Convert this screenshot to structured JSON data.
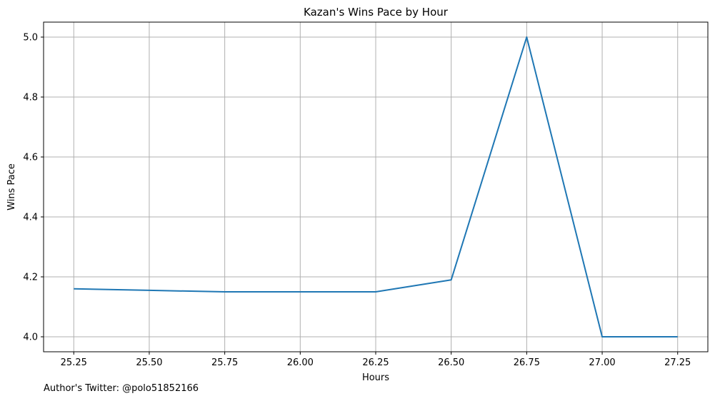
{
  "chart_data": {
    "type": "line",
    "title": "Kazan's Wins Pace by Hour",
    "xlabel": "Hours",
    "ylabel": "Wins Pace",
    "x": [
      25.25,
      25.5,
      25.75,
      26.0,
      26.25,
      26.5,
      26.75,
      27.0,
      27.25
    ],
    "series": [
      {
        "values": [
          4.16,
          4.155,
          4.15,
          4.15,
          4.15,
          4.19,
          5.0,
          4.0,
          4.0
        ],
        "color": "#1f77b4"
      }
    ],
    "xlim": [
      25.15,
      27.35
    ],
    "ylim": [
      3.95,
      5.05
    ],
    "xticks": [
      25.25,
      25.5,
      25.75,
      26.0,
      26.25,
      26.5,
      26.75,
      27.0,
      27.25
    ],
    "xtick_labels": [
      "25.25",
      "25.50",
      "25.75",
      "26.00",
      "26.25",
      "26.50",
      "26.75",
      "27.00",
      "27.25"
    ],
    "yticks": [
      4.0,
      4.2,
      4.4,
      4.6,
      4.8,
      5.0
    ],
    "ytick_labels": [
      "4.0",
      "4.2",
      "4.4",
      "4.6",
      "4.8",
      "5.0"
    ],
    "grid": true,
    "grid_color": "#b0b0b0"
  },
  "footnote": "Author's Twitter: @polo51852166"
}
